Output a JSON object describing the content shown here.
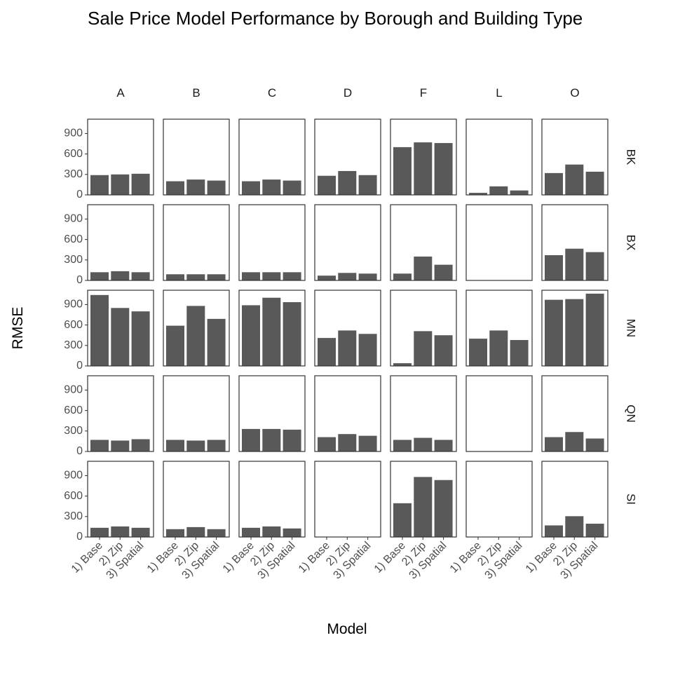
{
  "chart_data": {
    "type": "bar",
    "title": "Sale Price Model Performance by Borough and Building Type",
    "xlabel": "Model",
    "ylabel": "RMSE",
    "ylim": [
      0,
      1110
    ],
    "yticks": [
      0,
      300,
      600,
      900
    ],
    "categories": [
      "1) Base",
      "2) Zip",
      "3) Spatial"
    ],
    "bar_color": "#595959",
    "col_facets": [
      "A",
      "B",
      "C",
      "D",
      "F",
      "L",
      "O"
    ],
    "row_facets": [
      "BK",
      "BX",
      "MN",
      "QN",
      "SI"
    ],
    "panels": {
      "BK": {
        "A": [
          290,
          300,
          310
        ],
        "B": [
          200,
          225,
          210
        ],
        "C": [
          200,
          225,
          210
        ],
        "D": [
          280,
          350,
          290
        ],
        "F": [
          700,
          770,
          760
        ],
        "L": [
          30,
          125,
          65
        ],
        "O": [
          320,
          445,
          340
        ]
      },
      "BX": {
        "A": [
          120,
          135,
          120
        ],
        "B": [
          90,
          90,
          90
        ],
        "C": [
          120,
          120,
          120
        ],
        "D": [
          70,
          110,
          100
        ],
        "F": [
          100,
          350,
          230
        ],
        "L": [
          0,
          0,
          0
        ],
        "O": [
          370,
          465,
          415
        ]
      },
      "MN": {
        "A": [
          1040,
          850,
          800
        ],
        "B": [
          590,
          880,
          690
        ],
        "C": [
          890,
          1000,
          935
        ],
        "D": [
          410,
          520,
          470
        ],
        "F": [
          40,
          510,
          450
        ],
        "L": [
          400,
          520,
          380
        ],
        "O": [
          970,
          980,
          1060
        ]
      },
      "QN": {
        "A": [
          170,
          160,
          180
        ],
        "B": [
          170,
          160,
          170
        ],
        "C": [
          330,
          330,
          320
        ],
        "D": [
          210,
          255,
          230
        ],
        "F": [
          170,
          200,
          170
        ],
        "L": [
          0,
          0,
          0
        ],
        "O": [
          210,
          285,
          190
        ]
      },
      "SI": {
        "A": [
          135,
          155,
          135
        ],
        "B": [
          115,
          145,
          115
        ],
        "C": [
          135,
          155,
          125
        ],
        "D": [
          0,
          0,
          0
        ],
        "F": [
          495,
          880,
          835
        ],
        "L": [
          0,
          0,
          0
        ],
        "O": [
          170,
          305,
          195
        ]
      }
    }
  }
}
